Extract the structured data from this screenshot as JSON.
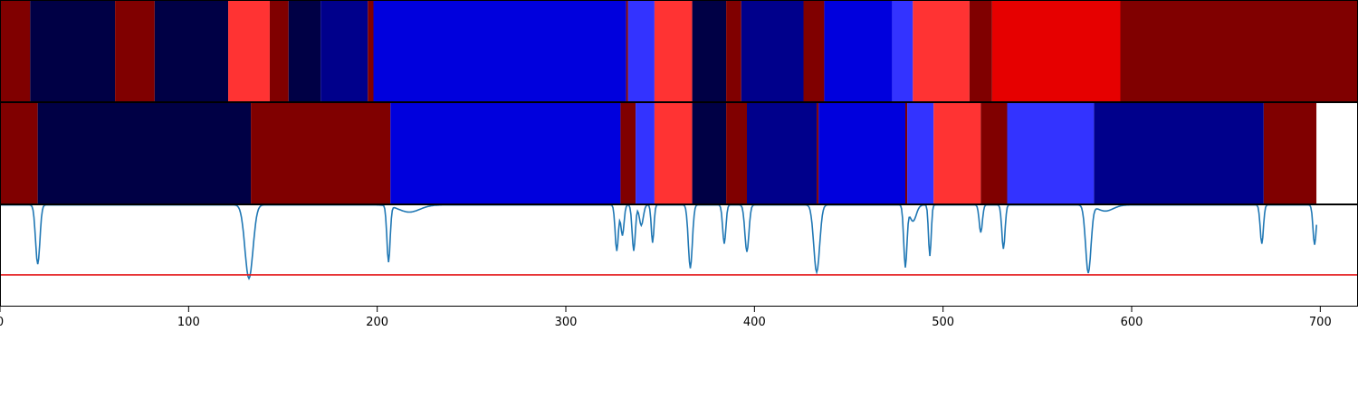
{
  "chart_data": {
    "type": "heatmap",
    "xlim": [
      0,
      720
    ],
    "x_ticks": [
      0,
      100,
      200,
      300,
      400,
      500,
      600,
      700
    ],
    "x_tick_labels": [
      "0",
      "100",
      "200",
      "300",
      "400",
      "500",
      "600",
      "700"
    ],
    "palette": {
      "0": "#800000",
      "1": "#000045",
      "2": "#ff3333",
      "3": "#00008b",
      "4": "#0000dd",
      "5": "#3333ff",
      "6": "#e60000",
      "7": "#ffffff"
    },
    "rows": [
      {
        "segments": [
          {
            "start": 0,
            "end": 16,
            "class": 0
          },
          {
            "start": 16,
            "end": 61,
            "class": 1
          },
          {
            "start": 61,
            "end": 82,
            "class": 0
          },
          {
            "start": 82,
            "end": 121,
            "class": 1
          },
          {
            "start": 121,
            "end": 143,
            "class": 2
          },
          {
            "start": 143,
            "end": 153,
            "class": 0
          },
          {
            "start": 153,
            "end": 170,
            "class": 1
          },
          {
            "start": 170,
            "end": 195,
            "class": 3
          },
          {
            "start": 195,
            "end": 198,
            "class": 0
          },
          {
            "start": 198,
            "end": 332,
            "class": 4
          },
          {
            "start": 332,
            "end": 333,
            "class": 0
          },
          {
            "start": 333,
            "end": 347,
            "class": 5
          },
          {
            "start": 347,
            "end": 367,
            "class": 2
          },
          {
            "start": 367,
            "end": 385,
            "class": 1
          },
          {
            "start": 385,
            "end": 393,
            "class": 0
          },
          {
            "start": 393,
            "end": 426,
            "class": 3
          },
          {
            "start": 426,
            "end": 437,
            "class": 0
          },
          {
            "start": 437,
            "end": 473,
            "class": 4
          },
          {
            "start": 473,
            "end": 484,
            "class": 5
          },
          {
            "start": 484,
            "end": 514,
            "class": 2
          },
          {
            "start": 514,
            "end": 526,
            "class": 0
          },
          {
            "start": 526,
            "end": 594,
            "class": 6
          },
          {
            "start": 594,
            "end": 720,
            "class": 0
          }
        ]
      },
      {
        "segments": [
          {
            "start": 0,
            "end": 20,
            "class": 0
          },
          {
            "start": 20,
            "end": 133,
            "class": 1
          },
          {
            "start": 133,
            "end": 207,
            "class": 0
          },
          {
            "start": 207,
            "end": 329,
            "class": 4
          },
          {
            "start": 329,
            "end": 337,
            "class": 0
          },
          {
            "start": 337,
            "end": 347,
            "class": 5
          },
          {
            "start": 347,
            "end": 367,
            "class": 2
          },
          {
            "start": 367,
            "end": 385,
            "class": 1
          },
          {
            "start": 385,
            "end": 396,
            "class": 0
          },
          {
            "start": 396,
            "end": 433,
            "class": 3
          },
          {
            "start": 433,
            "end": 434,
            "class": 0
          },
          {
            "start": 434,
            "end": 480,
            "class": 4
          },
          {
            "start": 480,
            "end": 481,
            "class": 0
          },
          {
            "start": 481,
            "end": 495,
            "class": 5
          },
          {
            "start": 495,
            "end": 520,
            "class": 2
          },
          {
            "start": 520,
            "end": 534,
            "class": 0
          },
          {
            "start": 534,
            "end": 580,
            "class": 5
          },
          {
            "start": 580,
            "end": 670,
            "class": 3
          },
          {
            "start": 670,
            "end": 698,
            "class": 0
          },
          {
            "start": 698,
            "end": 720,
            "class": 7
          }
        ]
      }
    ],
    "line_panel": {
      "ylim": [
        0,
        1
      ],
      "threshold": 0.31,
      "line_color": "#1f77b4",
      "threshold_color": "#e41a1c",
      "baseline": 0.995,
      "dips": [
        {
          "x": 20,
          "depth": 0.58,
          "width": 1.6
        },
        {
          "x": 132,
          "depth": 0.72,
          "width": 3.0
        },
        {
          "x": 206,
          "depth": 0.55,
          "width": 1.2
        },
        {
          "x": 217,
          "depth": 0.07,
          "width": 8.0
        },
        {
          "x": 327,
          "depth": 0.45,
          "width": 1.2
        },
        {
          "x": 330,
          "depth": 0.3,
          "width": 1.2
        },
        {
          "x": 336,
          "depth": 0.45,
          "width": 1.2
        },
        {
          "x": 340,
          "depth": 0.2,
          "width": 1.5
        },
        {
          "x": 346,
          "depth": 0.37,
          "width": 1.0
        },
        {
          "x": 366,
          "depth": 0.62,
          "width": 1.5
        },
        {
          "x": 384,
          "depth": 0.38,
          "width": 1.2
        },
        {
          "x": 396,
          "depth": 0.46,
          "width": 1.5
        },
        {
          "x": 433,
          "depth": 0.66,
          "width": 2.2
        },
        {
          "x": 480,
          "depth": 0.6,
          "width": 1.2
        },
        {
          "x": 484,
          "depth": 0.16,
          "width": 2.5
        },
        {
          "x": 493,
          "depth": 0.5,
          "width": 1.0
        },
        {
          "x": 520,
          "depth": 0.27,
          "width": 1.2
        },
        {
          "x": 532,
          "depth": 0.43,
          "width": 1.2
        },
        {
          "x": 577,
          "depth": 0.66,
          "width": 2.0
        },
        {
          "x": 586,
          "depth": 0.06,
          "width": 6.0
        },
        {
          "x": 669,
          "depth": 0.38,
          "width": 1.2
        },
        {
          "x": 697,
          "depth": 0.39,
          "width": 1.2
        }
      ]
    }
  }
}
